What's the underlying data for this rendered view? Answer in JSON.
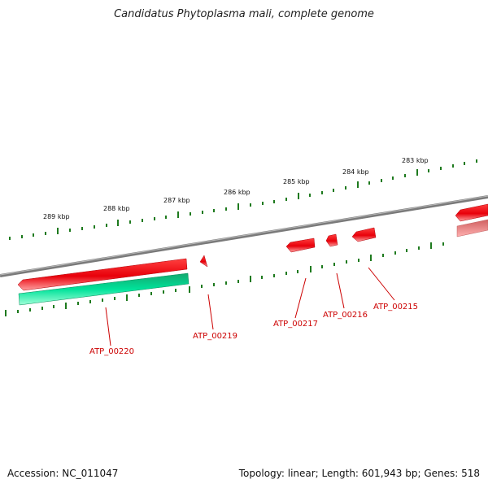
{
  "title": "Candidatus Phytoplasma mali, complete genome",
  "footer": {
    "accession": "Accession: NC_011047",
    "summary": "Topology: linear; Length: 601,943 bp; Genes: 518"
  },
  "colors": {
    "backbone": "#7a7a7a",
    "tick": "#1e7a1e",
    "forward_gene": "#e8000a",
    "reverse_gene": "#00c98a",
    "faded_gene": "#f08a8a",
    "label_line": "#cc0000",
    "label_text": "#cc0000"
  },
  "scale_labels": [
    "289 kbp",
    "288 kbp",
    "287 kbp",
    "286 kbp",
    "285 kbp",
    "284 kbp",
    "283 kbp"
  ],
  "gene_labels": [
    "ATP_00220",
    "ATP_00219",
    "ATP_00217",
    "ATP_00216",
    "ATP_00215"
  ]
}
